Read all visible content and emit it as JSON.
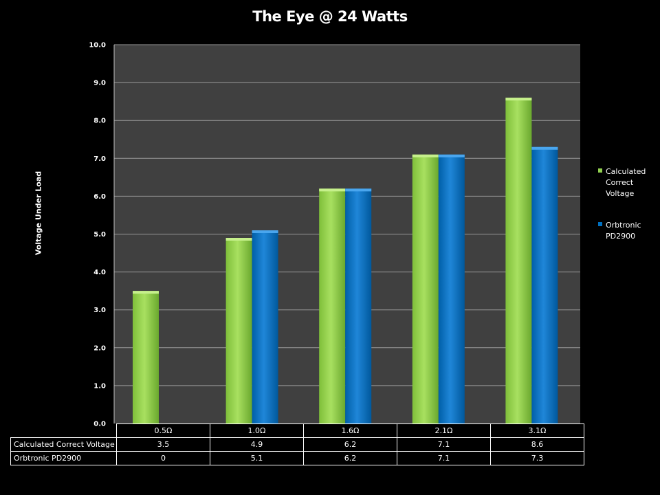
{
  "chart_data": {
    "type": "bar",
    "title": "The Eye @ 24 Watts",
    "ylabel": "Voltage Under Load",
    "xlabel": "",
    "categories": [
      "0.5Ω",
      "1.0Ω",
      "1.6Ω",
      "2.1Ω",
      "3.1Ω"
    ],
    "series": [
      {
        "name": "Calculated Correct Voltage",
        "values": [
          3.5,
          4.9,
          6.2,
          7.1,
          8.6
        ],
        "color": "#92d050"
      },
      {
        "name": "Orbtronic PD2900",
        "values": [
          0,
          5.1,
          6.2,
          7.1,
          7.3
        ],
        "color": "#0070c0"
      }
    ],
    "table_values": [
      [
        "3.5",
        "4.9",
        "6.2",
        "7.1",
        "8.6"
      ],
      [
        "0",
        "5.1",
        "6.2",
        "7.1",
        "7.3"
      ]
    ],
    "ylim": [
      0,
      10
    ],
    "yticks": [
      "0.0",
      "1.0",
      "2.0",
      "3.0",
      "4.0",
      "5.0",
      "6.0",
      "7.0",
      "8.0",
      "9.0",
      "10.0"
    ],
    "grid": true,
    "legend_position": "right",
    "legend_labels": [
      [
        "Calculated",
        "Correct",
        "Voltage"
      ],
      [
        "Orbtronic",
        "PD2900"
      ]
    ],
    "plot_background": "#404040"
  }
}
